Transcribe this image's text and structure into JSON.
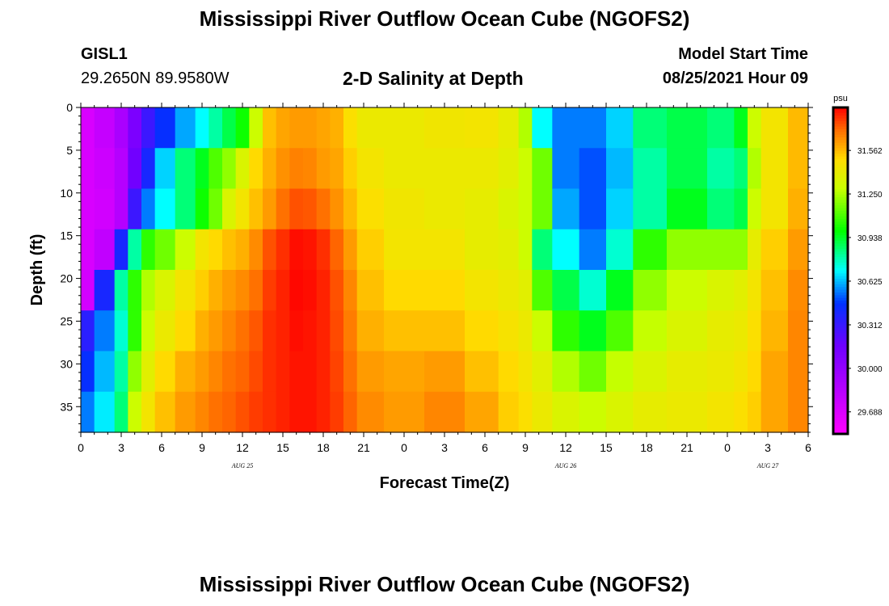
{
  "header": {
    "title": "Mississippi River Outflow Ocean Cube (NGOFS2)",
    "station": "GISL1",
    "coordinates": "29.2650N  89.9580W",
    "subtitle": "2-D Salinity at Depth",
    "model_start_label": "Model Start Time",
    "model_start_value": "08/25/2021 Hour 09"
  },
  "footer": {
    "title": "Mississippi River Outflow Ocean Cube (NGOFS2)"
  },
  "chart_data": {
    "type": "heatmap",
    "title": "2-D Salinity at Depth",
    "xlabel": "Forecast Time(Z)",
    "ylabel": "Depth (ft)",
    "x_tick_labels": [
      "0",
      "3",
      "6",
      "9",
      "12",
      "15",
      "18",
      "21",
      "0",
      "3",
      "6",
      "9",
      "12",
      "15",
      "18",
      "21",
      "0",
      "3",
      "6"
    ],
    "date_labels": [
      {
        "text": "AUG 25",
        "at_tick": 12
      },
      {
        "text": "AUG 26",
        "at_tick": 12
      },
      {
        "text": "AUG 27",
        "at_tick": 3
      }
    ],
    "y_ticks": [
      0,
      5,
      10,
      15,
      20,
      25,
      30,
      35
    ],
    "ylim": [
      0,
      38
    ],
    "colorbar": {
      "unit": "psu",
      "ticks": [
        "31.562",
        "31.250",
        "30.938",
        "30.625",
        "30.312",
        "30.000",
        "29.688"
      ],
      "vmin": 29.53,
      "vmax": 31.87
    },
    "columns": [
      {
        "hour": 0,
        "values": [
          29.7,
          29.7,
          29.7,
          29.7,
          29.72,
          30.35,
          30.45,
          30.55
        ]
      },
      {
        "hour": 2,
        "values": [
          29.78,
          29.75,
          29.73,
          29.8,
          30.4,
          30.55,
          30.62,
          30.68
        ]
      },
      {
        "hour": 3,
        "values": [
          29.9,
          29.85,
          29.85,
          30.4,
          30.8,
          30.75,
          30.8,
          30.85
        ]
      },
      {
        "hour": 4,
        "values": [
          30.1,
          30.15,
          30.3,
          30.8,
          31.05,
          31.05,
          31.2,
          31.3
        ]
      },
      {
        "hour": 5,
        "values": [
          30.3,
          30.4,
          30.55,
          31.05,
          31.25,
          31.3,
          31.38,
          31.45
        ]
      },
      {
        "hour": 6,
        "values": [
          30.45,
          30.65,
          30.7,
          31.15,
          31.35,
          31.42,
          31.5,
          31.55
        ]
      },
      {
        "hour": 8,
        "values": [
          30.6,
          30.85,
          30.85,
          31.3,
          31.45,
          31.5,
          31.58,
          31.62
        ]
      },
      {
        "hour": 9,
        "values": [
          30.7,
          30.95,
          31.0,
          31.45,
          31.52,
          31.58,
          31.62,
          31.66
        ]
      },
      {
        "hour": 10,
        "values": [
          30.8,
          31.1,
          31.15,
          31.5,
          31.58,
          31.62,
          31.66,
          31.7
        ]
      },
      {
        "hour": 11,
        "values": [
          30.9,
          31.2,
          31.35,
          31.55,
          31.62,
          31.66,
          31.7,
          31.72
        ]
      },
      {
        "hour": 12,
        "values": [
          31.0,
          31.35,
          31.45,
          31.58,
          31.65,
          31.7,
          31.72,
          31.75
        ]
      },
      {
        "hour": 13,
        "values": [
          31.3,
          31.5,
          31.55,
          31.65,
          31.7,
          31.74,
          31.76,
          31.78
        ]
      },
      {
        "hour": 14,
        "values": [
          31.55,
          31.58,
          31.62,
          31.75,
          31.78,
          31.8,
          31.8,
          31.8
        ]
      },
      {
        "hour": 15,
        "values": [
          31.6,
          31.64,
          31.7,
          31.8,
          31.82,
          31.82,
          31.82,
          31.82
        ]
      },
      {
        "hour": 16,
        "values": [
          31.62,
          31.67,
          31.75,
          31.85,
          31.86,
          31.85,
          31.84,
          31.84
        ]
      },
      {
        "hour": 17,
        "values": [
          31.62,
          31.66,
          31.74,
          31.84,
          31.85,
          31.84,
          31.84,
          31.84
        ]
      },
      {
        "hour": 18,
        "values": [
          31.6,
          31.62,
          31.7,
          31.8,
          31.82,
          31.82,
          31.82,
          31.82
        ]
      },
      {
        "hour": 19,
        "values": [
          31.58,
          31.6,
          31.64,
          31.72,
          31.75,
          31.76,
          31.77,
          31.78
        ]
      },
      {
        "hour": 20,
        "values": [
          31.48,
          31.52,
          31.56,
          31.62,
          31.66,
          31.68,
          31.7,
          31.72
        ]
      },
      {
        "hour": 21,
        "values": [
          31.42,
          31.45,
          31.48,
          31.52,
          31.55,
          31.58,
          31.62,
          31.65
        ]
      },
      {
        "hour": 24,
        "values": [
          31.42,
          31.42,
          31.44,
          31.45,
          31.5,
          31.55,
          31.6,
          31.62
        ]
      },
      {
        "hour": 27,
        "values": [
          31.44,
          31.42,
          31.42,
          31.45,
          31.5,
          31.55,
          31.62,
          31.66
        ]
      },
      {
        "hour": 30,
        "values": [
          31.45,
          31.42,
          31.4,
          31.4,
          31.45,
          31.5,
          31.55,
          31.6
        ]
      },
      {
        "hour": 32,
        "values": [
          31.4,
          31.38,
          31.35,
          31.38,
          31.42,
          31.46,
          31.5,
          31.52
        ]
      },
      {
        "hour": 33,
        "values": [
          31.25,
          31.3,
          31.3,
          31.3,
          31.38,
          31.42,
          31.45,
          31.48
        ]
      },
      {
        "hour": 34,
        "values": [
          30.7,
          31.15,
          31.15,
          30.85,
          31.1,
          31.3,
          31.38,
          31.42
        ]
      },
      {
        "hour": 36,
        "values": [
          30.55,
          30.55,
          30.6,
          30.7,
          30.9,
          31.05,
          31.25,
          31.35
        ]
      },
      {
        "hour": 38,
        "values": [
          30.55,
          30.5,
          30.5,
          30.55,
          30.75,
          30.95,
          31.15,
          31.3
        ]
      },
      {
        "hour": 40,
        "values": [
          30.65,
          30.62,
          30.65,
          30.75,
          30.95,
          31.1,
          31.28,
          31.35
        ]
      },
      {
        "hour": 42,
        "values": [
          30.85,
          30.8,
          30.8,
          31.05,
          31.2,
          31.28,
          31.35,
          31.4
        ]
      },
      {
        "hour": 45,
        "values": [
          30.9,
          30.9,
          30.95,
          31.2,
          31.3,
          31.35,
          31.4,
          31.42
        ]
      },
      {
        "hour": 48,
        "values": [
          30.85,
          30.8,
          30.85,
          31.2,
          31.35,
          31.4,
          31.42,
          31.45
        ]
      },
      {
        "hour": 49,
        "values": [
          30.95,
          30.85,
          30.9,
          31.2,
          31.38,
          31.42,
          31.45,
          31.48
        ]
      },
      {
        "hour": 50,
        "values": [
          31.3,
          31.25,
          31.3,
          31.4,
          31.45,
          31.48,
          31.5,
          31.52
        ]
      },
      {
        "hour": 51,
        "values": [
          31.45,
          31.45,
          31.45,
          31.52,
          31.55,
          31.57,
          31.6,
          31.6
        ]
      },
      {
        "hour": 54,
        "values": [
          31.56,
          31.56,
          31.58,
          31.62,
          31.65,
          31.66,
          31.66,
          31.66
        ]
      }
    ]
  }
}
